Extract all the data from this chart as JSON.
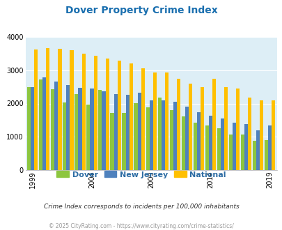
{
  "title": "Dover Property Crime Index",
  "title_color": "#1a6faf",
  "years": [
    1999,
    2000,
    2001,
    2002,
    2003,
    2004,
    2005,
    2006,
    2007,
    2008,
    2009,
    2010,
    2011,
    2012,
    2013,
    2014,
    2015,
    2016,
    2017,
    2018,
    2019
  ],
  "dover": [
    2490,
    2720,
    2420,
    2040,
    2290,
    1960,
    2410,
    1720,
    1720,
    2010,
    1890,
    2170,
    1800,
    1620,
    1420,
    1350,
    1260,
    1060,
    1060,
    880,
    900
  ],
  "new_jersey": [
    2500,
    2790,
    2650,
    2550,
    2470,
    2440,
    2360,
    2290,
    2270,
    2330,
    2090,
    2100,
    2060,
    1910,
    1740,
    1630,
    1560,
    1430,
    1390,
    1200,
    1340
  ],
  "national": [
    3610,
    3670,
    3640,
    3600,
    3500,
    3440,
    3350,
    3290,
    3210,
    3050,
    2940,
    2930,
    2740,
    2590,
    2500,
    2750,
    2500,
    2450,
    2180,
    2100,
    2100
  ],
  "dover_color": "#8dc63f",
  "nj_color": "#4f81bd",
  "national_color": "#ffc000",
  "bg_color": "#ddeef6",
  "ylim": [
    0,
    4000
  ],
  "yticks": [
    0,
    1000,
    2000,
    3000,
    4000
  ],
  "xtick_years": [
    1999,
    2004,
    2009,
    2014,
    2019
  ],
  "subtitle": "Crime Index corresponds to incidents per 100,000 inhabitants",
  "footer": "© 2025 CityRating.com - https://www.cityrating.com/crime-statistics/",
  "legend_labels": [
    "Dover",
    "New Jersey",
    "National"
  ]
}
